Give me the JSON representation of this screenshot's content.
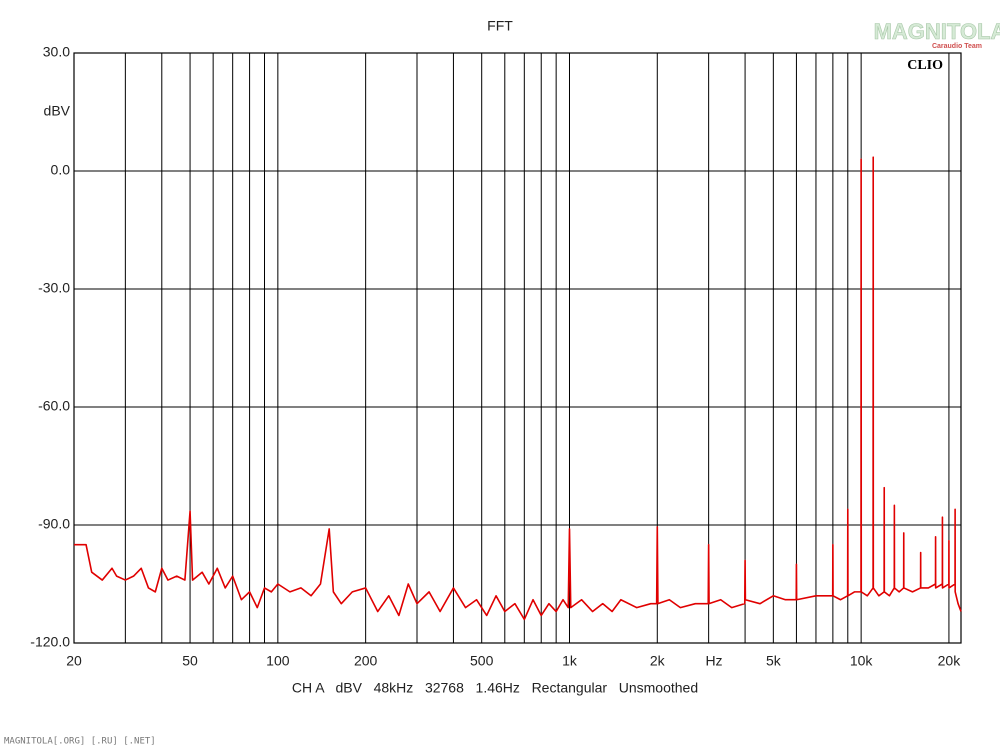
{
  "chart_data": {
    "type": "line",
    "title": "FFT",
    "brand": "CLIO",
    "watermark": "MAGNITOLA",
    "watermark_sub": "Caraudio Team",
    "footer": "CH A   dBV   48kHz   32768   1.46Hz   Rectangular   Unsmoothed",
    "site": "MAGNITOLA[.ORG] [.RU] [.NET]",
    "y_label": "dBV",
    "x_label": "Hz",
    "log_x": true,
    "grid": true,
    "color": "#e00000",
    "xlim": [
      20,
      22000
    ],
    "ylim": [
      -120,
      30
    ],
    "yticks": [
      {
        "value": -120,
        "label": "-120.0"
      },
      {
        "value": -90,
        "label": "-90.0"
      },
      {
        "value": -60,
        "label": "-60.0"
      },
      {
        "value": -30,
        "label": "-30.0"
      },
      {
        "value": 0,
        "label": "0.0"
      },
      {
        "value": 30,
        "label": "30.0"
      }
    ],
    "xticks": [
      20,
      50,
      100,
      200,
      500,
      {
        "value": 1000,
        "label": "1k"
      },
      {
        "value": 2000,
        "label": "2k"
      },
      {
        "value": 5000,
        "label": "5k"
      },
      {
        "value": 10000,
        "label": "10k"
      },
      {
        "value": 20000,
        "label": "20k"
      }
    ],
    "minor_xticks": [
      30,
      40,
      60,
      70,
      80,
      90,
      300,
      400,
      600,
      700,
      800,
      900,
      3000,
      4000,
      6000,
      7000,
      8000,
      9000
    ],
    "x": [
      20,
      22,
      23,
      25,
      27,
      28,
      30,
      32,
      34,
      36,
      38,
      40,
      42,
      45,
      48,
      50,
      51,
      55,
      58,
      62,
      66,
      70,
      75,
      80,
      85,
      90,
      95,
      100,
      110,
      120,
      130,
      140,
      150,
      155,
      165,
      180,
      200,
      220,
      240,
      260,
      280,
      300,
      330,
      360,
      400,
      440,
      480,
      520,
      560,
      600,
      650,
      700,
      750,
      800,
      850,
      900,
      950,
      990,
      1000,
      1010,
      1100,
      1200,
      1300,
      1400,
      1500,
      1700,
      1900,
      1990,
      2000,
      2010,
      2200,
      2400,
      2700,
      2990,
      3000,
      3010,
      3300,
      3600,
      3990,
      4000,
      4010,
      4500,
      5000,
      5500,
      5990,
      6000,
      6010,
      7000,
      7990,
      8000,
      8010,
      8500,
      8990,
      9000,
      9010,
      9500,
      9990,
      10000,
      10010,
      10500,
      10990,
      11000,
      11010,
      11500,
      11990,
      12000,
      12010,
      12500,
      12990,
      13000,
      13010,
      13500,
      13990,
      14000,
      14010,
      15000,
      15990,
      16000,
      16010,
      17000,
      17990,
      18000,
      18010,
      18990,
      19000,
      19010,
      19990,
      20000,
      20010,
      20990,
      21000,
      21010,
      21500,
      22000
    ],
    "values": [
      -95,
      -95,
      -102,
      -104,
      -101,
      -103,
      -104,
      -103,
      -101,
      -106,
      -107,
      -101,
      -104,
      -103,
      -104,
      -86.5,
      -104,
      -102,
      -105,
      -101,
      -106,
      -103,
      -109,
      -107,
      -111,
      -106,
      -107,
      -105,
      -107,
      -106,
      -108,
      -105,
      -91,
      -107,
      -110,
      -107,
      -106,
      -112,
      -108,
      -113,
      -105,
      -110,
      -107,
      -112,
      -106,
      -111,
      -109,
      -113,
      -108,
      -112,
      -110,
      -114,
      -109,
      -113,
      -110,
      -112,
      -109,
      -111,
      -91,
      -111,
      -109,
      -112,
      -110,
      -112,
      -109,
      -111,
      -110,
      -110,
      -90.5,
      -110,
      -109,
      -111,
      -110,
      -110,
      -95,
      -110,
      -109,
      -111,
      -110,
      -99,
      -109,
      -110,
      -108,
      -109,
      -109,
      -100,
      -109,
      -108,
      -108,
      -95,
      -108,
      -109,
      -108,
      -86,
      -108,
      -107,
      -107,
      3,
      -107,
      -108,
      -106,
      3.5,
      -106,
      -108,
      -107,
      -80.5,
      -107,
      -108,
      -106,
      -85,
      -106,
      -107,
      -106,
      -92,
      -106,
      -107,
      -106,
      -97,
      -106,
      -106,
      -105,
      -93,
      -106,
      -105,
      -88,
      -106,
      -105,
      -94,
      -106,
      -105,
      -86,
      -107,
      -110,
      -112
    ]
  }
}
